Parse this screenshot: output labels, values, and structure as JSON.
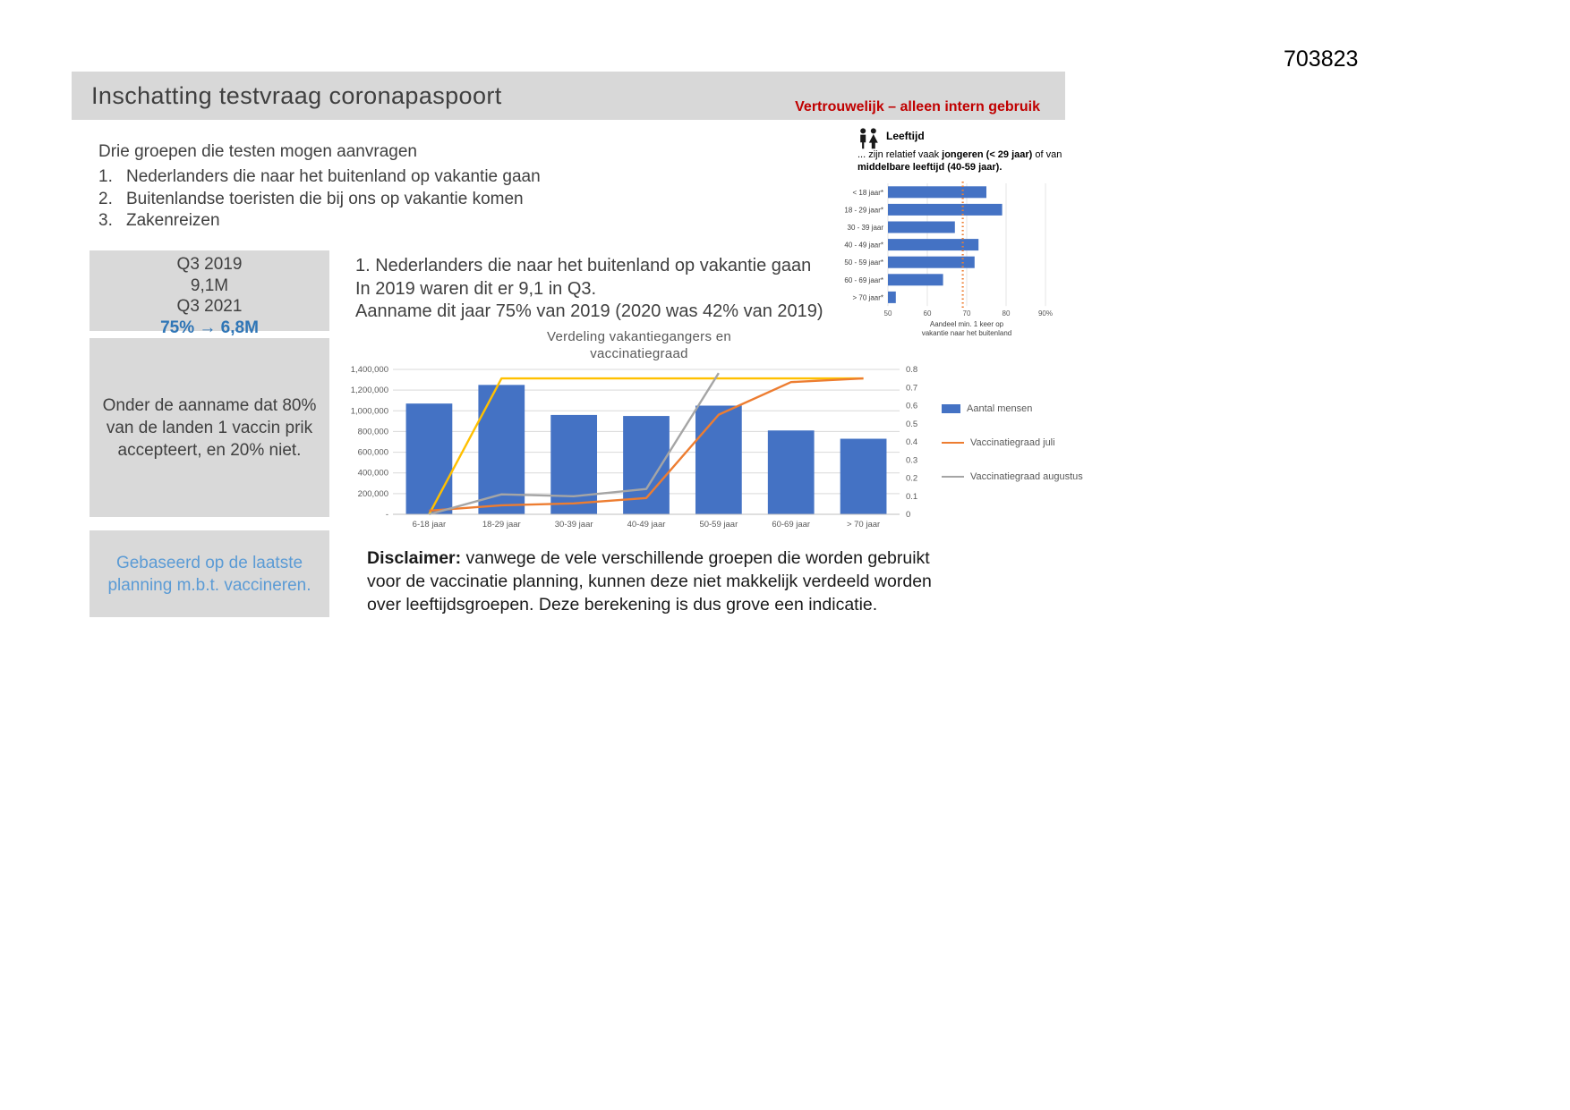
{
  "doc_number": "703823",
  "header": {
    "title": "Inschatting testvraag coronapaspoort",
    "confidential": "Vertrouwelijk – alleen intern gebruik",
    "confidential_color": "#C00000"
  },
  "intro": {
    "lead": "Drie groepen die testen mogen aanvragen",
    "items": [
      {
        "num": "1.",
        "text": "Nederlanders die naar het buitenland op vakantie gaan"
      },
      {
        "num": "2.",
        "text": "Buitenlandse toeristen die bij ons op vakantie komen"
      },
      {
        "num": "3.",
        "text": "Zakenreizen"
      }
    ]
  },
  "left_boxes": {
    "box1": {
      "lines": [
        "Q3 2019",
        "9,1M",
        "Q3 2021"
      ],
      "highlight": "75% → 6,8M",
      "highlight_color": "#2E75B6"
    },
    "box2": {
      "text": "Onder de aanname dat 80% van de landen 1 vaccin prik accepteert, en 20% niet."
    },
    "box3": {
      "text": "Gebaseerd op de laatste planning m.b.t. vaccineren.",
      "text_color": "#5B9BD5"
    }
  },
  "section1": {
    "lines": [
      "1. Nederlanders die naar het buitenland op vakantie gaan",
      "In 2019 waren dit er 9,1 in Q3.",
      "Aanname dit jaar 75% van 2019 (2020 was 42% van 2019)"
    ]
  },
  "age_panel": {
    "icon": "people-icon",
    "title": "Leeftijd",
    "subtitle_segments": [
      {
        "text": "... zijn relatief vaak ",
        "bold": false
      },
      {
        "text": "jongeren (< 29 jaar)",
        "bold": true
      },
      {
        "text": " of van ",
        "bold": false
      },
      {
        "text": "middelbare leeftijd (40-59 jaar).",
        "bold": true
      }
    ]
  },
  "disclaimer": {
    "label": "Disclaimer:",
    "text": " vanwege de vele verschillende groepen die worden gebruikt voor de vaccinatie planning, kunnen deze niet makkelijk verdeeld worden over leeftijdsgroepen. Deze berekening is dus grove een indicatie."
  },
  "chart_data": [
    {
      "type": "bar",
      "title_lines": [
        "Verdeling  vakantiegangers  en",
        "vaccinatiegraad"
      ],
      "categories": [
        "6-18 jaar",
        "18-29 jaar",
        "30-39 jaar",
        "40-49 jaar",
        "50-59 jaar",
        "60-69 jaar",
        "> 70 jaar"
      ],
      "series": [
        {
          "name": "Aantal mensen",
          "kind": "bar",
          "axis": "left",
          "color": "#4472C4",
          "values": [
            1070000,
            1250000,
            960000,
            950000,
            1050000,
            810000,
            730000
          ]
        },
        {
          "name": "",
          "kind": "line",
          "axis": "right",
          "color": "#FFC000",
          "values": [
            0,
            0.75,
            0.75,
            0.75,
            0.75,
            0.75,
            0.75
          ]
        },
        {
          "name": "Vaccinatiegraad juli",
          "kind": "line",
          "axis": "right",
          "color": "#ED7D31",
          "values": [
            0.02,
            0.05,
            0.06,
            0.09,
            0.55,
            0.73,
            0.75
          ]
        },
        {
          "name": "Vaccinatiegraad augustus",
          "kind": "line",
          "axis": "right",
          "color": "#A5A5A5",
          "values": [
            0.0,
            0.11,
            0.1,
            0.14,
            0.78,
            null,
            null
          ]
        }
      ],
      "left_axis": {
        "min": 0,
        "max": 1400000,
        "labels_bottom_up": [
          "-",
          "200,000",
          "400,000",
          "600,000",
          "800,000",
          "1,000,000",
          "1,200,000",
          "1,400,000"
        ]
      },
      "right_axis": {
        "min": 0,
        "max": 0.8,
        "labels_bottom_up": [
          "0",
          "0.1",
          "0.2",
          "0.3",
          "0.4",
          "0.5",
          "0.6",
          "0.7",
          "0.8"
        ]
      },
      "legend": [
        {
          "label": "Aantal mensen",
          "marker": "square",
          "color": "#4472C4"
        },
        {
          "label": "Vaccinatiegraad juli",
          "marker": "line",
          "color": "#ED7D31"
        },
        {
          "label": "Vaccinatiegraad augustus",
          "marker": "line",
          "color": "#A5A5A5"
        }
      ],
      "grid": true,
      "legend_position": "right"
    },
    {
      "type": "hbar",
      "categories": [
        "< 18 jaar*",
        "18 - 29 jaar*",
        "30 - 39 jaar",
        "40 - 49 jaar*",
        "50 - 59 jaar*",
        "60 - 69 jaar*",
        "> 70 jaar*"
      ],
      "values": [
        75,
        79,
        67,
        73,
        72,
        64,
        52
      ],
      "bar_color": "#4472C4",
      "xmin": 50,
      "xmax": 90,
      "ticks": [
        {
          "value": 50,
          "label": "50"
        },
        {
          "value": 60,
          "label": "60"
        },
        {
          "value": 70,
          "label": "70"
        },
        {
          "value": 80,
          "label": "80"
        },
        {
          "value": 90,
          "label": "90%"
        }
      ],
      "reference_line": {
        "value": 69,
        "color": "#ED7D31",
        "style": "dotted"
      },
      "xlabel_lines": [
        "Aandeel min. 1 keer op",
        "vakantie naar het buitenland"
      ]
    }
  ]
}
